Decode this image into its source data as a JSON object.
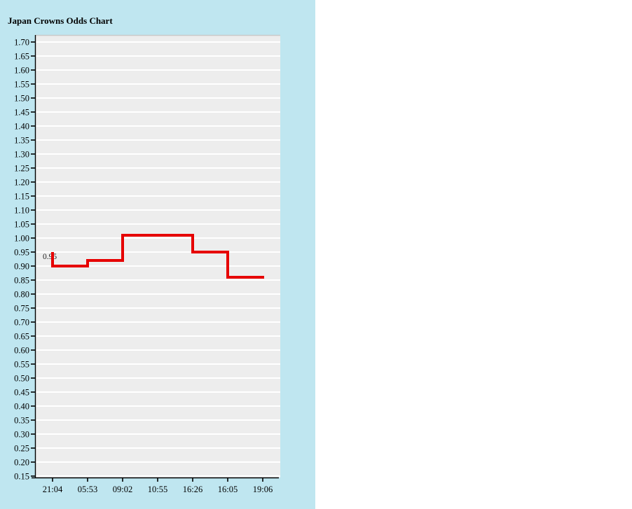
{
  "panel": {
    "background_color": "#bfe6f0",
    "plot_background_color": "#ededed",
    "gridline_color": "#ffffff",
    "plot_top_border_color": "#c9c9c9",
    "axis_color": "#000000"
  },
  "chart_data": {
    "type": "line",
    "subtype": "step-after",
    "title": "Japan Crowns Odds Chart",
    "xlabel": "",
    "ylabel": "",
    "x_labels": [
      "21:04",
      "05:53",
      "09:02",
      "10:55",
      "16:26",
      "16:05",
      "19:06"
    ],
    "y_tick_labels": [
      "1.70",
      "1.65",
      "1.60",
      "1.55",
      "1.50",
      "1.45",
      "1.40",
      "1.35",
      "1.30",
      "1.25",
      "1.20",
      "1.15",
      "1.10",
      "1.05",
      "1.00",
      "0.95",
      "0.90",
      "0.85",
      "0.80",
      "0.75",
      "0.70",
      "0.65",
      "0.60",
      "0.55",
      "0.50",
      "0.45",
      "0.40",
      "0.35",
      "0.30",
      "0.25",
      "0.20",
      "0.15"
    ],
    "ylim": [
      0.15,
      1.7
    ],
    "ytick_step": 0.05,
    "grid": "horizontal-only",
    "legend": "none",
    "line_color": "#e60000",
    "line_width": 4,
    "points": [
      {
        "time": "21:04",
        "value": 0.95
      },
      {
        "time": "21:04",
        "value": 0.9
      },
      {
        "time": "05:53",
        "value": 0.92
      },
      {
        "time": "09:02",
        "value": 1.01
      },
      {
        "time": "16:26",
        "value": 0.95
      },
      {
        "time": "16:05",
        "value": 0.86
      },
      {
        "time": "19:06",
        "value": 0.86
      }
    ],
    "annotation": {
      "text": "0.95",
      "at_time": "21:04",
      "at_value": 0.95
    }
  }
}
